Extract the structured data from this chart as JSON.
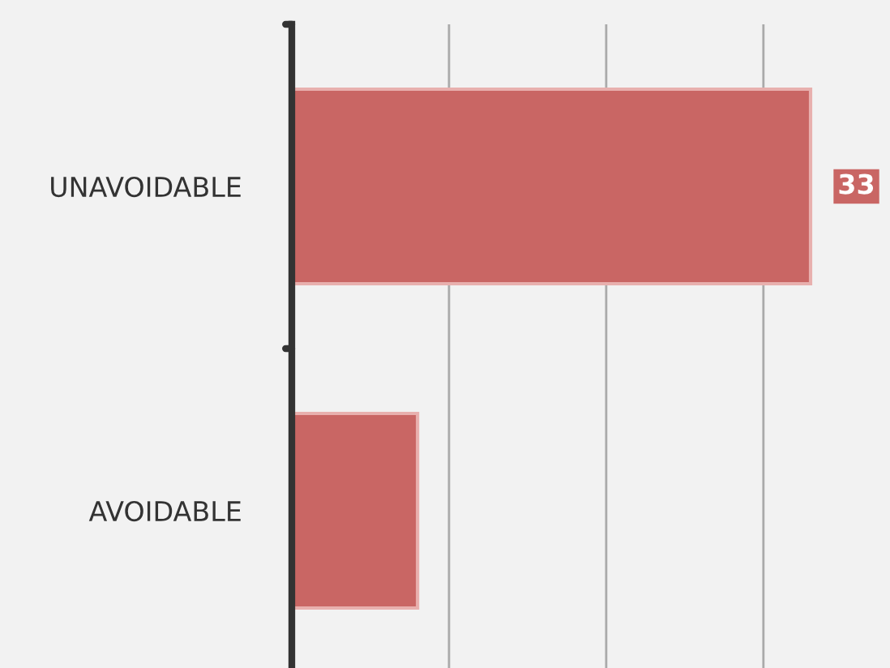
{
  "chart_data": {
    "type": "bar",
    "orientation": "horizontal",
    "categories": [
      "UNAVOIDABLE",
      "AVOIDABLE"
    ],
    "values": [
      33,
      8
    ],
    "color": "#c96664",
    "value_labels": [
      "33",
      null
    ],
    "xticks": [
      {
        "value": 0,
        "label": null
      },
      {
        "value": 10,
        "label": null
      },
      {
        "value": 20,
        "label": null
      },
      {
        "value": 30,
        "label": null
      }
    ],
    "tick_labels": "y",
    "grid": "x",
    "legend": false
  }
}
